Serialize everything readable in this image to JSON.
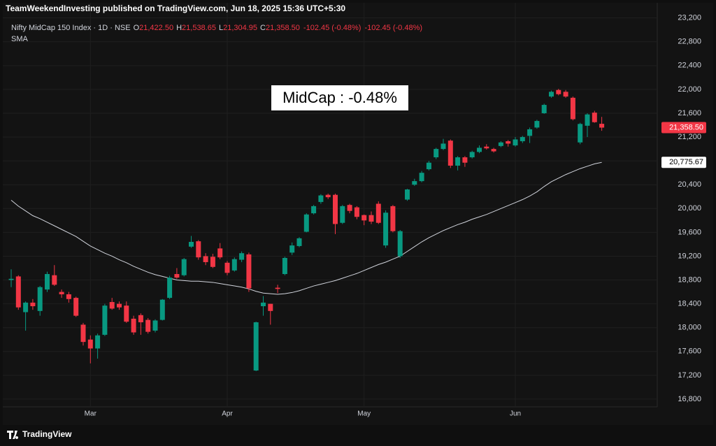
{
  "chart_data": {
    "type": "candlestick",
    "header": "TeamWeekendInvesting published on TradingView.com, Jun 18, 2025 15:36 UTC+5:30",
    "symbol": "Nifty MidCap 150 Index · 1D · NSE",
    "legend_items": [
      {
        "key": "O",
        "value": "21,422.50"
      },
      {
        "key": "H",
        "value": "21,538.65"
      },
      {
        "key": "L",
        "value": "21,304.95"
      },
      {
        "key": "C",
        "value": "21,358.50"
      }
    ],
    "change_labels": [
      "-102.45 (-0.48%)",
      "-102.45 (-0.48%)"
    ],
    "annotation": "MidCap : -0.48%",
    "categories": [
      null,
      null,
      null,
      null,
      null,
      null,
      null,
      null,
      null,
      null,
      null,
      "Mar",
      null,
      null,
      null,
      null,
      null,
      null,
      null,
      null,
      null,
      null,
      null,
      null,
      null,
      null,
      null,
      null,
      null,
      null,
      "Apr",
      null,
      null,
      null,
      null,
      null,
      null,
      null,
      null,
      null,
      null,
      null,
      null,
      null,
      null,
      null,
      null,
      null,
      null,
      "May",
      null,
      null,
      null,
      null,
      null,
      null,
      null,
      null,
      null,
      null,
      null,
      null,
      null,
      null,
      null,
      null,
      null,
      null,
      null,
      null,
      "Jun",
      null,
      null,
      null,
      null,
      null,
      null,
      null,
      null,
      null,
      null,
      null,
      null
    ],
    "open": [
      18800,
      18860,
      18260,
      18420,
      18280,
      18640,
      18880,
      18600,
      18560,
      18500,
      18050,
      17800,
      17650,
      17880,
      18430,
      18400,
      18370,
      18150,
      18210,
      18130,
      17950,
      18130,
      18500,
      18900,
      18880,
      19360,
      19450,
      19200,
      19190,
      19330,
      19090,
      18960,
      19140,
      19230,
      17280,
      18360,
      18400,
      18670,
      18900,
      19260,
      19370,
      19610,
      19920,
      20110,
      20230,
      20230,
      19760,
      20060,
      20020,
      19890,
      19890,
      20080,
      19380,
      20040,
      19200,
      20150,
      20400,
      20460,
      20660,
      20860,
      21000,
      21140,
      20720,
      20860,
      20860,
      20950,
      21040,
      21000,
      21050,
      21130,
      21060,
      21130,
      21220,
      21360,
      21600,
      21880,
      21990,
      21960,
      21860,
      21110,
      21390,
      21610,
      21422.5
    ],
    "high": [
      18980,
      18880,
      18440,
      18480,
      18700,
      18940,
      19050,
      18640,
      18600,
      18520,
      18080,
      17870,
      17900,
      18400,
      18500,
      18440,
      18440,
      18200,
      18240,
      18160,
      18140,
      18480,
      18870,
      19000,
      19170,
      19540,
      19470,
      19250,
      19240,
      19420,
      19120,
      19180,
      19280,
      19260,
      18100,
      18530,
      18400,
      18720,
      19190,
      19430,
      19520,
      19920,
      20060,
      20240,
      20250,
      20250,
      20060,
      20080,
      20040,
      19900,
      19950,
      20120,
      19970,
      20060,
      19640,
      20330,
      20500,
      20630,
      20800,
      21020,
      21170,
      21160,
      20880,
      20880,
      20970,
      21060,
      21080,
      21020,
      21130,
      21150,
      21200,
      21220,
      21360,
      21490,
      21760,
      21980,
      22010,
      21990,
      21880,
      21440,
      21600,
      21640,
      21538.65
    ],
    "low": [
      18680,
      18300,
      17950,
      18300,
      18200,
      18600,
      18700,
      18500,
      18420,
      18180,
      17700,
      17400,
      17480,
      17860,
      18300,
      18300,
      18080,
      17880,
      17880,
      17900,
      17920,
      18120,
      18480,
      18820,
      18860,
      19340,
      19140,
      19050,
      19000,
      19150,
      18880,
      18940,
      19100,
      18600,
      17270,
      18200,
      18050,
      18580,
      18880,
      19220,
      19350,
      19600,
      19900,
      20080,
      20160,
      19570,
      19740,
      19920,
      19820,
      19720,
      19740,
      19740,
      19340,
      19600,
      19170,
      20130,
      20380,
      20440,
      20640,
      20830,
      20980,
      20680,
      20640,
      20700,
      20840,
      20930,
      20990,
      20940,
      21030,
      21040,
      21040,
      21100,
      21100,
      21340,
      21590,
      21860,
      21900,
      21860,
      21480,
      21080,
      21200,
      21440,
      21304.95
    ],
    "close": [
      18820,
      18340,
      18420,
      18360,
      18680,
      18900,
      18720,
      18560,
      18480,
      18200,
      17760,
      17650,
      17870,
      18370,
      18320,
      18340,
      18100,
      17920,
      18090,
      17930,
      18120,
      18470,
      18840,
      18840,
      19150,
      19440,
      19180,
      19100,
      19020,
      19180,
      18920,
      19150,
      19250,
      18660,
      18090,
      18420,
      18280,
      18650,
      19170,
      19380,
      19500,
      19900,
      20040,
      20220,
      20190,
      19740,
      20040,
      19960,
      19860,
      19800,
      19780,
      19760,
      19930,
      19620,
      19620,
      20320,
      20460,
      20600,
      20770,
      21000,
      21090,
      20720,
      20860,
      20770,
      20950,
      21020,
      21010,
      20960,
      21110,
      21090,
      21160,
      21200,
      21330,
      21470,
      21740,
      21960,
      21920,
      21880,
      21500,
      21420,
      21580,
      21450,
      21358.5
    ],
    "up_color": "#089981",
    "down_color": "#f23645",
    "sma": {
      "name": "SMA",
      "color": "#d1d4dc",
      "values": [
        20140,
        20040,
        19960,
        19880,
        19830,
        19770,
        19710,
        19650,
        19590,
        19530,
        19450,
        19370,
        19310,
        19250,
        19200,
        19140,
        19090,
        19030,
        18980,
        18930,
        18890,
        18860,
        18830,
        18800,
        18790,
        18780,
        18780,
        18770,
        18760,
        18740,
        18720,
        18700,
        18680,
        18650,
        18610,
        18580,
        18570,
        18560,
        18570,
        18590,
        18620,
        18660,
        18700,
        18730,
        18760,
        18790,
        18830,
        18870,
        18910,
        18960,
        19010,
        19060,
        19100,
        19150,
        19200,
        19280,
        19360,
        19440,
        19510,
        19570,
        19630,
        19680,
        19730,
        19770,
        19820,
        19860,
        19900,
        19950,
        20000,
        20050,
        20100,
        20150,
        20210,
        20280,
        20370,
        20450,
        20510,
        20570,
        20620,
        20670,
        20710,
        20750,
        20775.67
      ]
    },
    "last_label": "21,358.50",
    "sma_label": "20,775.67",
    "ylim": [
      16670,
      23290
    ],
    "yticks": [
      {
        "value": 16800,
        "label": "16,800"
      },
      {
        "value": 17200,
        "label": "17,200"
      },
      {
        "value": 17600,
        "label": "17,600"
      },
      {
        "value": 18000,
        "label": "18,000"
      },
      {
        "value": 18400,
        "label": "18,400"
      },
      {
        "value": 18800,
        "label": "18,800"
      },
      {
        "value": 19200,
        "label": "19,200"
      },
      {
        "value": 19600,
        "label": "19,600"
      },
      {
        "value": 20000,
        "label": "20,000"
      },
      {
        "value": 20400,
        "label": "20,400"
      },
      {
        "value": 20800,
        "label": "20,800"
      },
      {
        "value": 21200,
        "label": "21,200"
      },
      {
        "value": 21600,
        "label": "21,600"
      },
      {
        "value": 22000,
        "label": "22,000"
      },
      {
        "value": 22400,
        "label": "22,400"
      },
      {
        "value": 22800,
        "label": "22,800"
      },
      {
        "value": 23200,
        "label": "23,200"
      }
    ],
    "grid": true,
    "footer": "TradingView"
  }
}
